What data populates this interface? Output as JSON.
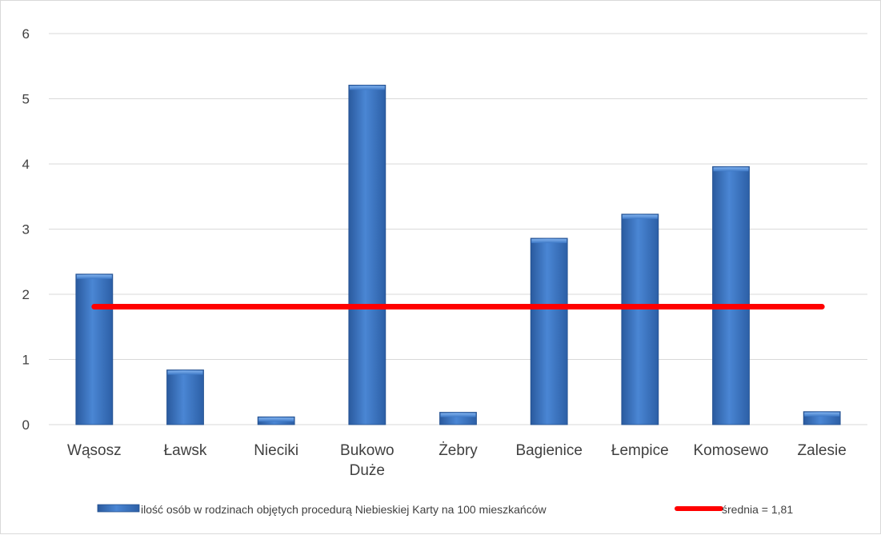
{
  "chart_data": {
    "type": "bar",
    "categories": [
      "Wąsosz",
      "Ławsk",
      "Nieciki",
      "Bukowo Duże",
      "Żebry",
      "Bagienice",
      "Łempice",
      "Komosewo",
      "Zalesie"
    ],
    "series": [
      {
        "name": "ilość osób w rodzinach objętych procedurą Niebieskiej Karty na 100 mieszkańców",
        "type": "bar",
        "values": [
          2.31,
          0.84,
          0.12,
          5.21,
          0.19,
          2.86,
          3.23,
          3.96,
          0.2
        ],
        "color": "#3a74c4"
      },
      {
        "name": "średnia = 1,81",
        "type": "line",
        "values": [
          1.81,
          1.81,
          1.81,
          1.81,
          1.81,
          1.81,
          1.81,
          1.81,
          1.81
        ],
        "color": "#ff0000"
      }
    ],
    "yticks": [
      "0",
      "1",
      "2",
      "3",
      "4",
      "5",
      "6"
    ],
    "ylim": [
      0,
      6
    ],
    "grid": true,
    "legend_position": "bottom"
  }
}
